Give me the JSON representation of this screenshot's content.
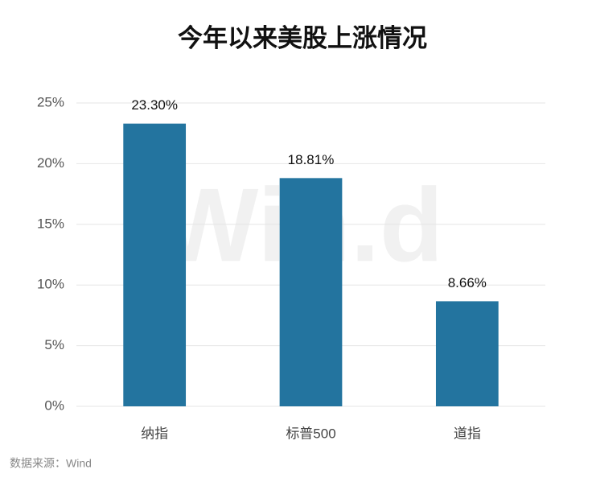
{
  "chart_data": {
    "type": "bar",
    "title": "今年以来美股上涨情况",
    "categories": [
      "纳指",
      "标普500",
      "道指"
    ],
    "values": [
      23.3,
      18.81,
      8.66
    ],
    "value_labels": [
      "23.30%",
      "18.81%",
      "8.66%"
    ],
    "color": "#23749f",
    "ylim": [
      0,
      25
    ],
    "yticks": [
      {
        "value": 0,
        "label": "0%"
      },
      {
        "value": 5,
        "label": "5%"
      },
      {
        "value": 10,
        "label": "10%"
      },
      {
        "value": 15,
        "label": "15%"
      },
      {
        "value": 20,
        "label": "20%"
      },
      {
        "value": 25,
        "label": "25%"
      }
    ],
    "grid": true,
    "source": "数据来源：Wind",
    "watermark": "Win.d"
  }
}
